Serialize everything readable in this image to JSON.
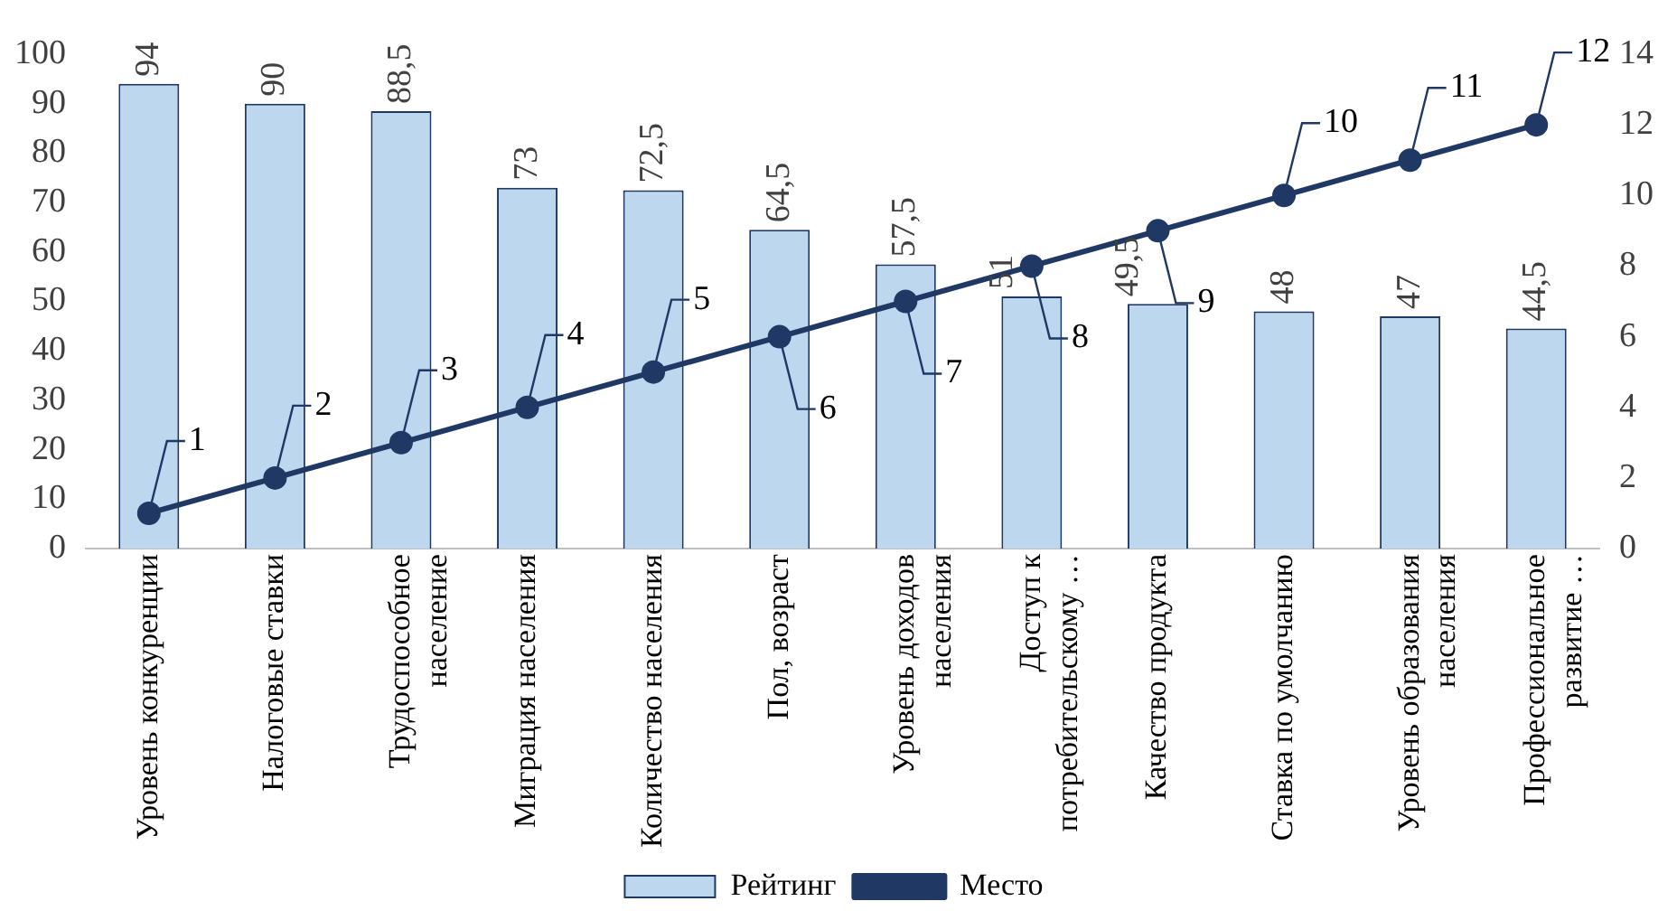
{
  "chart_data": {
    "type": "bar",
    "categories": [
      "Уровень конкуренции",
      "Налоговые ставки",
      "Трудоспособное население",
      "Миграция населения",
      "Количество населения",
      "Пол, возраст",
      "Уровень доходов населения",
      "Доступ к потребительскому …",
      "Качество продукта",
      "Ставка по умолчанию",
      "Уровень образования населения",
      "Профессиональное развитие …"
    ],
    "series": [
      {
        "name": "Рейтинг",
        "color": "#bdd7ee",
        "values": [
          94,
          90,
          88.5,
          73,
          72.5,
          64.5,
          57.5,
          51,
          49.5,
          48,
          47,
          44.5
        ],
        "value_labels": [
          "94",
          "90",
          "88,5",
          "73",
          "72,5",
          "64,5",
          "57,5",
          "51",
          "49,5",
          "48",
          "47",
          "44,5"
        ]
      },
      {
        "name": "Место",
        "type": "line",
        "axis": "y2",
        "color": "#1f3864",
        "values": [
          1,
          2,
          3,
          4,
          5,
          6,
          7,
          8,
          9,
          10,
          11,
          12
        ],
        "value_labels": [
          "1",
          "2",
          "3",
          "4",
          "5",
          "6",
          "7",
          "8",
          "9",
          "10",
          "11",
          "12"
        ]
      }
    ],
    "ylim": [
      0,
      100
    ],
    "yticks": [
      0,
      10,
      20,
      30,
      40,
      50,
      60,
      70,
      80,
      90,
      100
    ],
    "y2lim": [
      0,
      14
    ],
    "y2ticks": [
      0,
      2,
      4,
      6,
      8,
      10,
      12,
      14
    ],
    "legend": "bottom",
    "marker": "circle",
    "grid": false
  }
}
